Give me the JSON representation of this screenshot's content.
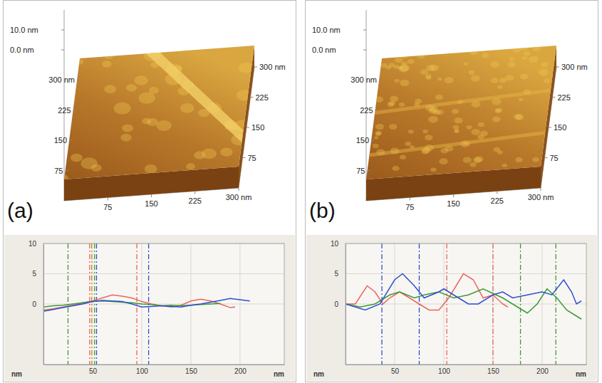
{
  "panels": [
    {
      "label": "(a)",
      "surface": {
        "xlim": [
          0,
          300
        ],
        "ylim": [
          0,
          300
        ],
        "zlim": [
          0,
          10
        ],
        "x_ticks": [
          75,
          150,
          225,
          {
            "value": 300,
            "label": "300 nm"
          }
        ],
        "y_ticks": [
          75,
          150,
          225,
          {
            "value": 300,
            "label": "300 nm"
          }
        ],
        "z_ticks": [
          {
            "value": 10,
            "label": "10.0 nm"
          },
          {
            "value": 0,
            "label": "0.0 nm"
          }
        ]
      }
    },
    {
      "label": "(b)",
      "surface": {
        "xlim": [
          0,
          300
        ],
        "ylim": [
          0,
          300
        ],
        "zlim": [
          0,
          10
        ],
        "x_ticks": [
          75,
          150,
          225,
          {
            "value": 300,
            "label": "300 nm"
          }
        ],
        "y_ticks": [
          75,
          150,
          225,
          {
            "value": 300,
            "label": "300 nm"
          }
        ],
        "z_ticks": [
          {
            "value": 10,
            "label": "10.0 nm"
          },
          {
            "value": 0,
            "label": "0.0 nm"
          }
        ]
      }
    }
  ],
  "chart_data": [
    {
      "type": "line",
      "x_label": "nm",
      "y_label": "nm",
      "xlim": [
        0,
        245
      ],
      "ylim": [
        -10,
        10
      ],
      "xticks": [
        50,
        100,
        150,
        200
      ],
      "yticks": [
        0,
        5,
        10
      ],
      "grid": true,
      "series": [
        {
          "color": "#e8665a",
          "x": [
            0,
            10,
            20,
            30,
            40,
            50,
            60,
            70,
            80,
            90,
            100,
            110,
            120,
            130,
            140,
            150,
            160,
            170,
            180,
            190,
            195
          ],
          "values": [
            -1,
            -0.8,
            -0.5,
            -0.2,
            0.2,
            0.5,
            1,
            1.5,
            1.3,
            1,
            0.4,
            0,
            -0.3,
            -0.5,
            -0.2,
            0.5,
            0.8,
            0.5,
            0,
            -0.6,
            -0.5
          ]
        },
        {
          "color": "#3a9a3a",
          "x": [
            0,
            10,
            20,
            30,
            40,
            50,
            60,
            70,
            80,
            90,
            100,
            110,
            120,
            130,
            140,
            150,
            160,
            170,
            180
          ],
          "values": [
            -0.5,
            -0.3,
            -0.2,
            0,
            0.2,
            0.4,
            0.5,
            0.4,
            0.3,
            0.2,
            0,
            -0.1,
            -0.3,
            -0.2,
            -0.3,
            -0.2,
            -0.1,
            0,
            0.1
          ]
        },
        {
          "color": "#2f4fd0",
          "x": [
            0,
            10,
            20,
            30,
            40,
            50,
            60,
            70,
            80,
            90,
            100,
            110,
            120,
            130,
            140,
            150,
            160,
            170,
            180,
            190,
            200,
            210
          ],
          "values": [
            -1.2,
            -0.9,
            -0.6,
            -0.3,
            0,
            0.4,
            0.6,
            0.5,
            0.4,
            0,
            -0.5,
            -0.4,
            -0.3,
            -0.4,
            -0.5,
            -0.2,
            0,
            0.3,
            0.6,
            0.9,
            0.7,
            0.5
          ]
        }
      ],
      "cursors": [
        {
          "x": 25,
          "color": "#3a9a3a"
        },
        {
          "x": 47,
          "color": "#e8665a"
        },
        {
          "x": 49,
          "color": "#e08020"
        },
        {
          "x": 52,
          "color": "#3a9a3a"
        },
        {
          "x": 54,
          "color": "#2f4fd0"
        },
        {
          "x": 95,
          "color": "#e8665a"
        },
        {
          "x": 107,
          "color": "#2f4fd0"
        }
      ]
    },
    {
      "type": "line",
      "x_label": "nm",
      "y_label": "nm",
      "xlim": [
        0,
        245
      ],
      "ylim": [
        -10,
        10
      ],
      "xticks": [
        50,
        100,
        150,
        200
      ],
      "yticks": [
        0,
        5,
        10
      ],
      "grid": true,
      "series": [
        {
          "color": "#e8665a",
          "x": [
            0,
            10,
            22,
            30,
            38,
            45,
            55,
            65,
            75,
            85,
            95,
            105,
            120,
            130,
            140,
            150,
            160,
            165
          ],
          "values": [
            0,
            0,
            3,
            2,
            0,
            1,
            2,
            1,
            0,
            -1,
            -1,
            1,
            5,
            4,
            1,
            1.5,
            0,
            -0.5
          ]
        },
        {
          "color": "#3a9a3a",
          "x": [
            0,
            15,
            30,
            45,
            55,
            70,
            80,
            95,
            110,
            125,
            140,
            160,
            175,
            185,
            195,
            205,
            215,
            225,
            235,
            240
          ],
          "values": [
            0,
            -0.5,
            0,
            1.5,
            2,
            1,
            1.5,
            2,
            1,
            1.5,
            2.5,
            1,
            -0.5,
            -1.5,
            0,
            2.5,
            1,
            -1,
            -2,
            -2.5
          ]
        },
        {
          "color": "#2f4fd0",
          "x": [
            0,
            20,
            35,
            50,
            58,
            70,
            80,
            95,
            100,
            115,
            125,
            135,
            150,
            160,
            170,
            185,
            200,
            210,
            222,
            230,
            235,
            240
          ],
          "values": [
            0,
            -1,
            0,
            4,
            5,
            3,
            1,
            2,
            2.5,
            1,
            0,
            0,
            1.5,
            2,
            1,
            1.5,
            2,
            1.5,
            4,
            2,
            0,
            0.5
          ]
        }
      ],
      "cursors": [
        {
          "x": 37,
          "color": "#2f4fd0"
        },
        {
          "x": 75,
          "color": "#2f4fd0"
        },
        {
          "x": 103,
          "color": "#e8665a"
        },
        {
          "x": 150,
          "color": "#e8665a"
        },
        {
          "x": 178,
          "color": "#3a9a3a"
        },
        {
          "x": 214,
          "color": "#3a9a3a"
        }
      ]
    }
  ]
}
